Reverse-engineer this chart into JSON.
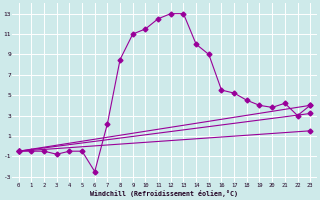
{
  "xlabel": "Windchill (Refroidissement éolien,°C)",
  "bg_color": "#ceeaea",
  "grid_color": "#ffffff",
  "line_color": "#990099",
  "xlim": [
    -0.5,
    23.5
  ],
  "ylim": [
    -3.5,
    14.0
  ],
  "xticks": [
    0,
    1,
    2,
    3,
    4,
    5,
    6,
    7,
    8,
    9,
    10,
    11,
    12,
    13,
    14,
    15,
    16,
    17,
    18,
    19,
    20,
    21,
    22,
    23
  ],
  "yticks": [
    -3,
    -1,
    1,
    3,
    5,
    7,
    9,
    11,
    13
  ],
  "curve_x": [
    0,
    1,
    2,
    3,
    4,
    5,
    6,
    7,
    8,
    9,
    10,
    11,
    12,
    13,
    14,
    15,
    16,
    17,
    18,
    19,
    20,
    21,
    22,
    23
  ],
  "curve_y": [
    -0.5,
    -0.5,
    -0.5,
    -0.8,
    -0.5,
    -0.5,
    -2.5,
    2.2,
    8.5,
    11.0,
    11.5,
    12.5,
    13.0,
    13.0,
    10.0,
    9.0,
    5.5,
    5.2,
    4.5,
    4.0,
    3.8,
    4.2,
    3.0,
    4.0
  ],
  "line1_x": [
    0,
    23
  ],
  "line1_y": [
    -0.5,
    4.0
  ],
  "line2_x": [
    0,
    23
  ],
  "line2_y": [
    -0.5,
    3.2
  ],
  "line3_x": [
    0,
    23
  ],
  "line3_y": [
    -0.5,
    1.5
  ],
  "marker": "D",
  "markersize": 2.5,
  "linewidth": 0.8
}
